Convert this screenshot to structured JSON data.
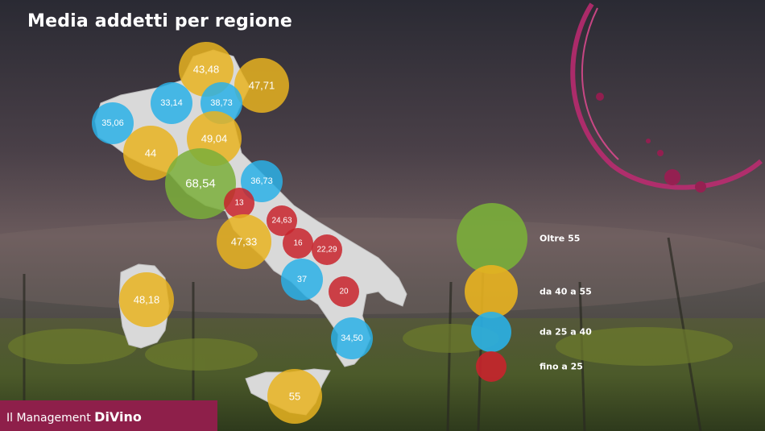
{
  "chart_data": {
    "type": "bubble-map",
    "title": "Media addetti per regione",
    "colors": {
      "oltre_55": "#7aae3a",
      "da_40_a_55": "#e8b320",
      "da_25_a_40": "#2ab0e6",
      "fino_a_25": "#c8232c"
    },
    "legend": [
      {
        "label": "Oltre 55",
        "class": "oltre_55"
      },
      {
        "label": "da 40 a 55",
        "class": "da_40_a_55"
      },
      {
        "label": "da 25 a 40",
        "class": "da_25_a_40"
      },
      {
        "label": "fino a 25",
        "class": "fino_a_25"
      }
    ],
    "points": [
      {
        "label": "43,48",
        "value": 43.48
      },
      {
        "label": "47,71",
        "value": 47.71
      },
      {
        "label": "33,14",
        "value": 33.14
      },
      {
        "label": "38,73",
        "value": 38.73
      },
      {
        "label": "35,06",
        "value": 35.06
      },
      {
        "label": "49,04",
        "value": 49.04
      },
      {
        "label": "44",
        "value": 44
      },
      {
        "label": "68,54",
        "value": 68.54
      },
      {
        "label": "36,73",
        "value": 36.73
      },
      {
        "label": "13",
        "value": 13
      },
      {
        "label": "24,63",
        "value": 24.63
      },
      {
        "label": "47,33",
        "value": 47.33
      },
      {
        "label": "16",
        "value": 16
      },
      {
        "label": "22,29",
        "value": 22.29
      },
      {
        "label": "37",
        "value": 37
      },
      {
        "label": "20",
        "value": 20
      },
      {
        "label": "48,18",
        "value": 48.18
      },
      {
        "label": "34,50",
        "value": 34.5
      },
      {
        "label": "55",
        "value": 55
      }
    ]
  },
  "footer": {
    "brand_prefix": "Il Management",
    "brand_name": "DiVino"
  },
  "icons": [
    "wine-stain-icon"
  ]
}
